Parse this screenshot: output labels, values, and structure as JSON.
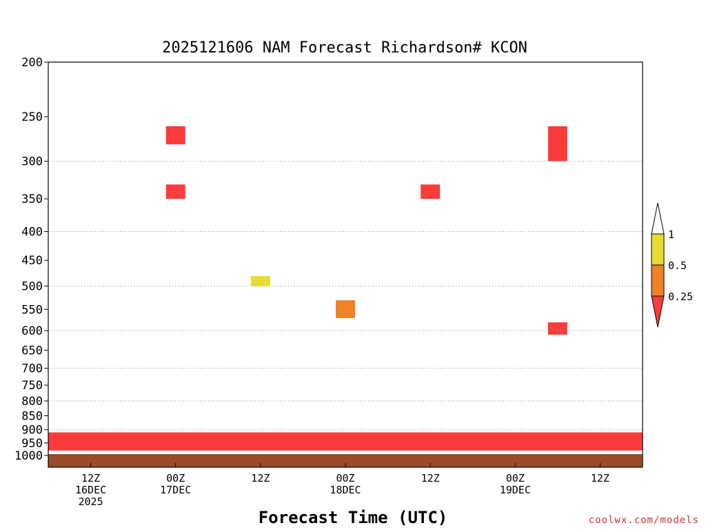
{
  "chart_data": {
    "type": "heatmap",
    "title": "2025121606 NAM Forecast Richardson# KCON",
    "xlabel": "Forecast Time (UTC)",
    "ylabel": "",
    "y_scale": "log-pressure",
    "ylim": [
      1000,
      200
    ],
    "y_ticks": [
      {
        "value": 200,
        "label": "200"
      },
      {
        "value": 250,
        "label": "250"
      },
      {
        "value": 300,
        "label": "300"
      },
      {
        "value": 350,
        "label": "350"
      },
      {
        "value": 400,
        "label": "400"
      },
      {
        "value": 450,
        "label": "450"
      },
      {
        "value": 500,
        "label": "500"
      },
      {
        "value": 550,
        "label": "550"
      },
      {
        "value": 600,
        "label": "600"
      },
      {
        "value": 650,
        "label": "650"
      },
      {
        "value": 700,
        "label": "700"
      },
      {
        "value": 750,
        "label": "750"
      },
      {
        "value": 800,
        "label": "800"
      },
      {
        "value": 850,
        "label": "850"
      },
      {
        "value": 900,
        "label": "900"
      },
      {
        "value": 950,
        "label": "950"
      },
      {
        "value": 1000,
        "label": "1000"
      }
    ],
    "gridlines_at": [
      300,
      400,
      500,
      600,
      700,
      800,
      900
    ],
    "xlim": [
      "2025-12-16T06:00Z",
      "2025-12-19T18:00Z"
    ],
    "x_ticks": [
      {
        "time": "2025-12-16T12:00Z",
        "lines": [
          "12Z",
          "16DEC",
          "2025"
        ]
      },
      {
        "time": "2025-12-17T00:00Z",
        "lines": [
          "00Z",
          "17DEC"
        ]
      },
      {
        "time": "2025-12-17T12:00Z",
        "lines": [
          "12Z"
        ]
      },
      {
        "time": "2025-12-18T00:00Z",
        "lines": [
          "00Z",
          "18DEC"
        ]
      },
      {
        "time": "2025-12-18T12:00Z",
        "lines": [
          "12Z"
        ]
      },
      {
        "time": "2025-12-19T00:00Z",
        "lines": [
          "00Z",
          "19DEC"
        ]
      },
      {
        "time": "2025-12-19T12:00Z",
        "lines": [
          "12Z"
        ]
      }
    ],
    "legend": {
      "placement": "right",
      "levels": [
        "1",
        "0.5",
        "0.25"
      ],
      "colors": {
        "above_1": "#ffffff",
        "0.5_to_1": "#e6dc32",
        "0.25_to_0.5": "#f08228",
        "below_0.25": "#fa3c3c"
      }
    },
    "cells": [
      {
        "time": "2025-12-17T00:00Z",
        "p_top": 260,
        "p_bot": 280,
        "class": "below_0.25"
      },
      {
        "time": "2025-12-17T00:00Z",
        "p_top": 330,
        "p_bot": 350,
        "class": "below_0.25"
      },
      {
        "time": "2025-12-17T12:00Z",
        "p_top": 480,
        "p_bot": 500,
        "class": "0.5_to_1"
      },
      {
        "time": "2025-12-18T00:00Z",
        "p_top": 530,
        "p_bot": 570,
        "class": "0.25_to_0.5"
      },
      {
        "time": "2025-12-18T12:00Z",
        "p_top": 330,
        "p_bot": 350,
        "class": "below_0.25"
      },
      {
        "time": "2025-12-19T06:00Z",
        "p_top": 260,
        "p_bot": 300,
        "class": "below_0.25"
      },
      {
        "time": "2025-12-19T06:00Z",
        "p_top": 580,
        "p_bot": 610,
        "class": "below_0.25"
      }
    ],
    "boundary_layer": {
      "class": "below_0.25",
      "p_top": 910,
      "p_bot": 980
    }
  },
  "footer": {
    "credit": "coolwx.com/models"
  }
}
